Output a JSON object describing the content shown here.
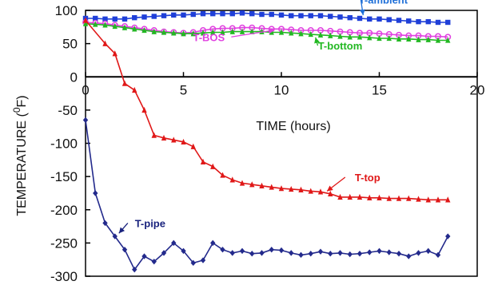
{
  "chart_data": {
    "type": "line",
    "xlabel": "TIME (hours)",
    "ylabel_main": "TEMPERATURE (",
    "ylabel_sup": "0",
    "ylabel_tail": "F)",
    "xlim": [
      0,
      20
    ],
    "ylim": [
      -300,
      100
    ],
    "x_ticks": [
      0,
      5,
      10,
      15,
      20
    ],
    "y_ticks": [
      100,
      50,
      0,
      -50,
      -100,
      -150,
      -200,
      -250,
      -300
    ],
    "x_tick_labels": [
      "0",
      "5",
      "10",
      "15",
      "20"
    ],
    "y_tick_labels": [
      "100",
      "50",
      "0",
      "-50",
      "-100",
      "-150",
      "-200",
      "-250",
      "-300"
    ],
    "grid": false,
    "series": [
      {
        "name": "T-ambient",
        "color": "#1f3fd8",
        "label_color": "#1e6fd8",
        "marker": "square",
        "x": [
          0,
          0.5,
          1,
          1.5,
          2,
          2.5,
          3,
          3.5,
          4,
          4.5,
          5,
          5.5,
          6,
          6.5,
          7,
          7.5,
          8,
          8.5,
          9,
          9.5,
          10,
          10.5,
          11,
          11.5,
          12,
          12.5,
          13,
          13.5,
          14,
          14.5,
          15,
          15.5,
          16,
          16.5,
          17,
          17.5,
          18,
          18.5
        ],
        "y": [
          88,
          88,
          87,
          87,
          87,
          89,
          90,
          91,
          92,
          93,
          93,
          94,
          95,
          95,
          95,
          95,
          96,
          95,
          94,
          94,
          93,
          92,
          92,
          92,
          92,
          91,
          90,
          89,
          88,
          87,
          87,
          86,
          85,
          84,
          83,
          83,
          82,
          82
        ]
      },
      {
        "name": "T-BOS",
        "color": "#e040e0",
        "label_color": "#e040e0",
        "marker": "circle",
        "x": [
          0,
          0.5,
          1,
          1.5,
          2,
          2.5,
          3,
          3.5,
          4,
          4.5,
          5,
          5.5,
          6,
          6.5,
          7,
          7.5,
          8,
          8.5,
          9,
          9.5,
          10,
          10.5,
          11,
          11.5,
          12,
          12.5,
          13,
          13.5,
          14,
          14.5,
          15,
          15.5,
          16,
          16.5,
          17,
          17.5,
          18,
          18.5
        ],
        "y": [
          82,
          81,
          80,
          78,
          76,
          74,
          72,
          70,
          68,
          67,
          66,
          67,
          70,
          72,
          73,
          73,
          74,
          74,
          73,
          72,
          72,
          71,
          70,
          70,
          70,
          69,
          68,
          67,
          66,
          66,
          65,
          64,
          63,
          62,
          62,
          61,
          61,
          60
        ]
      },
      {
        "name": "T-bottom",
        "color": "#22b822",
        "label_color": "#22b822",
        "marker": "triangle",
        "x": [
          0,
          0.5,
          1,
          1.5,
          2,
          2.5,
          3,
          3.5,
          4,
          4.5,
          5,
          5.5,
          6,
          6.5,
          7,
          7.5,
          8,
          8.5,
          9,
          9.5,
          10,
          10.5,
          11,
          11.5,
          12,
          12.5,
          13,
          13.5,
          14,
          14.5,
          15,
          15.5,
          16,
          16.5,
          17,
          17.5,
          18,
          18.5
        ],
        "y": [
          80,
          79,
          78,
          76,
          74,
          72,
          70,
          68,
          67,
          66,
          65,
          65,
          66,
          67,
          67,
          68,
          68,
          68,
          68,
          67,
          67,
          66,
          65,
          64,
          63,
          62,
          61,
          60,
          60,
          59,
          58,
          58,
          57,
          57,
          56,
          56,
          55,
          55
        ]
      },
      {
        "name": "T-top",
        "color": "#e01818",
        "label_color": "#e01818",
        "marker": "triangle",
        "x": [
          0,
          1,
          1.5,
          2,
          2.5,
          3,
          3.5,
          4,
          4.5,
          5,
          5.5,
          6,
          6.5,
          7,
          7.5,
          8,
          8.5,
          9,
          9.5,
          10,
          10.5,
          11,
          11.5,
          12,
          12.5,
          13,
          13.5,
          14,
          14.5,
          15,
          15.5,
          16,
          16.5,
          17,
          17.5,
          18,
          18.5
        ],
        "y": [
          85,
          50,
          35,
          -10,
          -20,
          -50,
          -88,
          -92,
          -95,
          -98,
          -105,
          -128,
          -135,
          -148,
          -155,
          -160,
          -162,
          -164,
          -166,
          -168,
          -169,
          -170,
          -172,
          -173,
          -176,
          -181,
          -181,
          -181,
          -182,
          -182,
          -183,
          -183,
          -183,
          -184,
          -185,
          -185,
          -185
        ]
      },
      {
        "name": "T-pipe",
        "color": "#232a8c",
        "label_color": "#1a237e",
        "marker": "diamond",
        "x": [
          0,
          0.5,
          1,
          1.5,
          2,
          2.5,
          3,
          3.5,
          4,
          4.5,
          5,
          5.5,
          6,
          6.5,
          7,
          7.5,
          8,
          8.5,
          9,
          9.5,
          10,
          10.5,
          11,
          11.5,
          12,
          12.5,
          13,
          13.5,
          14,
          14.5,
          15,
          15.5,
          16,
          16.5,
          17,
          17.5,
          18,
          18.5
        ],
        "y": [
          -65,
          -175,
          -220,
          -240,
          -260,
          -290,
          -270,
          -278,
          -265,
          -250,
          -262,
          -280,
          -276,
          -250,
          -260,
          -265,
          -262,
          -266,
          -265,
          -260,
          -261,
          -265,
          -268,
          -266,
          -263,
          -266,
          -265,
          -267,
          -266,
          -264,
          -262,
          -264,
          -266,
          -270,
          -265,
          -262,
          -268,
          -240
        ]
      }
    ],
    "annotations": [
      {
        "text": "T-ambient",
        "series": "T-ambient",
        "at": [
          14.2,
          88
        ],
        "label_at": [
          15.2,
          110
        ]
      },
      {
        "text": "T-BOS",
        "series": "T-BOS",
        "at": [
          9.8,
          71
        ],
        "label_at": [
          6.3,
          54
        ]
      },
      {
        "text": "T-bottom",
        "series": "T-bottom",
        "at": [
          11.7,
          64
        ],
        "label_at": [
          13.0,
          41
        ]
      },
      {
        "text": "T-top",
        "series": "T-top",
        "at": [
          12.2,
          -175
        ],
        "label_at": [
          14.4,
          -157
        ]
      },
      {
        "text": "T-pipe",
        "series": "T-pipe",
        "at": [
          1.6,
          -239
        ],
        "label_at": [
          3.3,
          -226
        ]
      }
    ]
  }
}
